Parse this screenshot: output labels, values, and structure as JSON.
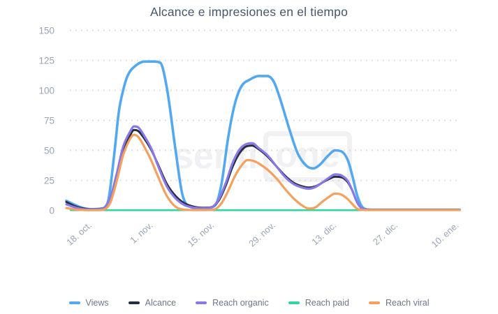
{
  "title": "Alcance e impresiones en el tiempo",
  "watermark": {
    "text": "senti",
    "box_text": "one"
  },
  "chart_data": {
    "type": "line",
    "title": "Alcance e impresiones en el tiempo",
    "xlabel": "",
    "ylabel": "",
    "ylim": [
      0,
      150
    ],
    "y_ticks": [
      0,
      25,
      50,
      75,
      100,
      125,
      150
    ],
    "grid": "horizontal-dotted",
    "grid_color": "#d8d8d8",
    "legend_position": "bottom",
    "x_ticks": [
      {
        "day": 4,
        "label": "18. oct."
      },
      {
        "day": 18,
        "label": "1. nov."
      },
      {
        "day": 32,
        "label": "15. nov."
      },
      {
        "day": 46,
        "label": "29. nov."
      },
      {
        "day": 60,
        "label": "13. dic."
      },
      {
        "day": 74,
        "label": "27. dic."
      },
      {
        "day": 88,
        "label": "10. ene."
      }
    ],
    "series": [
      {
        "name": "Views",
        "color": "#52A9F2",
        "width": 3.6,
        "points": [
          [
            0,
            8
          ],
          [
            2,
            4.5
          ],
          [
            4,
            1.8
          ],
          [
            6,
            1
          ],
          [
            8,
            1.5
          ],
          [
            9.5,
            7
          ],
          [
            11,
            48
          ],
          [
            12,
            82
          ],
          [
            13,
            100
          ],
          [
            14,
            112
          ],
          [
            16,
            121
          ],
          [
            18,
            124
          ],
          [
            20,
            124
          ],
          [
            21.5,
            123
          ],
          [
            23,
            102
          ],
          [
            25,
            50
          ],
          [
            26.5,
            14
          ],
          [
            28,
            3.5
          ],
          [
            30,
            2
          ],
          [
            32,
            2
          ],
          [
            34,
            4
          ],
          [
            35.5,
            22
          ],
          [
            37,
            60
          ],
          [
            38.5,
            88
          ],
          [
            40,
            103
          ],
          [
            42,
            109
          ],
          [
            44,
            112
          ],
          [
            46,
            112
          ],
          [
            47.5,
            107
          ],
          [
            49,
            92
          ],
          [
            51,
            68
          ],
          [
            53,
            47
          ],
          [
            55,
            37
          ],
          [
            56.5,
            35
          ],
          [
            58,
            38
          ],
          [
            60,
            46
          ],
          [
            61.5,
            50
          ],
          [
            63,
            49
          ],
          [
            64.5,
            41
          ],
          [
            65.5,
            28
          ],
          [
            66.5,
            13
          ],
          [
            67.5,
            4
          ],
          [
            68.5,
            1
          ],
          [
            70,
            0.5
          ],
          [
            74,
            0.5
          ],
          [
            78,
            0.5
          ],
          [
            83,
            0.5
          ],
          [
            88,
            0.5
          ],
          [
            90,
            0.5
          ]
        ]
      },
      {
        "name": "Alcance",
        "color": "#242E40",
        "width": 3,
        "points": [
          [
            0,
            7
          ],
          [
            2,
            3.5
          ],
          [
            4,
            1.5
          ],
          [
            6,
            1
          ],
          [
            8,
            1.3
          ],
          [
            10,
            9
          ],
          [
            11.5,
            28
          ],
          [
            13,
            50
          ],
          [
            14.5,
            62
          ],
          [
            15.5,
            67
          ],
          [
            16.5,
            66
          ],
          [
            18,
            59
          ],
          [
            19.5,
            50
          ],
          [
            21,
            38
          ],
          [
            23,
            22
          ],
          [
            25,
            12
          ],
          [
            27,
            6
          ],
          [
            29,
            3.2
          ],
          [
            31,
            2.2
          ],
          [
            33,
            2.5
          ],
          [
            35,
            9
          ],
          [
            36.5,
            21
          ],
          [
            38,
            36
          ],
          [
            39.5,
            47
          ],
          [
            41,
            53
          ],
          [
            42.5,
            54
          ],
          [
            44,
            51
          ],
          [
            46,
            45
          ],
          [
            48,
            37
          ],
          [
            50,
            29
          ],
          [
            52,
            23
          ],
          [
            54,
            20
          ],
          [
            55.5,
            19
          ],
          [
            57,
            20
          ],
          [
            58.5,
            23
          ],
          [
            60,
            26
          ],
          [
            61.5,
            28
          ],
          [
            63,
            27.5
          ],
          [
            64.5,
            23
          ],
          [
            65.5,
            16
          ],
          [
            66.5,
            7
          ],
          [
            67.5,
            2
          ],
          [
            68.5,
            0.7
          ],
          [
            70,
            0.5
          ],
          [
            74,
            0.5
          ],
          [
            80,
            0.5
          ],
          [
            85,
            0.5
          ],
          [
            88,
            0.5
          ],
          [
            90,
            0.5
          ]
        ]
      },
      {
        "name": "Reach organic",
        "color": "#8979E8",
        "width": 3.2,
        "points": [
          [
            0,
            5
          ],
          [
            2,
            2.5
          ],
          [
            4,
            1
          ],
          [
            6,
            0.8
          ],
          [
            8,
            1.1
          ],
          [
            10,
            10
          ],
          [
            11.5,
            30
          ],
          [
            13,
            53
          ],
          [
            14.5,
            65
          ],
          [
            15.5,
            70
          ],
          [
            16.5,
            69
          ],
          [
            18,
            61
          ],
          [
            19.5,
            51
          ],
          [
            21,
            37
          ],
          [
            23,
            20
          ],
          [
            25,
            10
          ],
          [
            27,
            4.5
          ],
          [
            29,
            2.4
          ],
          [
            31,
            1.8
          ],
          [
            33,
            2.2
          ],
          [
            35,
            10
          ],
          [
            36.5,
            23
          ],
          [
            38,
            39
          ],
          [
            39.5,
            50
          ],
          [
            41,
            55
          ],
          [
            42.5,
            56
          ],
          [
            44,
            52
          ],
          [
            46,
            46
          ],
          [
            48,
            37
          ],
          [
            50,
            28
          ],
          [
            52,
            22
          ],
          [
            54,
            19
          ],
          [
            55.5,
            18
          ],
          [
            57,
            19.5
          ],
          [
            58.5,
            23
          ],
          [
            60,
            27
          ],
          [
            61.5,
            30
          ],
          [
            63,
            29
          ],
          [
            64.5,
            24
          ],
          [
            65.5,
            16
          ],
          [
            66.5,
            7
          ],
          [
            67.5,
            2
          ],
          [
            68.5,
            0.6
          ],
          [
            70,
            0.4
          ],
          [
            74,
            0.4
          ],
          [
            80,
            0.4
          ],
          [
            85,
            0.4
          ],
          [
            88,
            0.4
          ],
          [
            90,
            0.4
          ]
        ]
      },
      {
        "name": "Reach paid",
        "color": "#2FD6A0",
        "width": 2.6,
        "points": [
          [
            1,
            0.2
          ],
          [
            10,
            0.2
          ],
          [
            20,
            0.2
          ],
          [
            30,
            0.2
          ],
          [
            40,
            0.2
          ],
          [
            50,
            0.2
          ],
          [
            60,
            0.2
          ],
          [
            70,
            0.2
          ],
          [
            80,
            0.2
          ],
          [
            90,
            0.2
          ]
        ]
      },
      {
        "name": "Reach viral",
        "color": "#F5A05C",
        "width": 3.2,
        "points": [
          [
            0,
            2
          ],
          [
            2,
            0.8
          ],
          [
            4,
            0.3
          ],
          [
            6,
            0.2
          ],
          [
            8,
            0.3
          ],
          [
            10,
            6
          ],
          [
            11.5,
            24
          ],
          [
            13,
            46
          ],
          [
            14.5,
            59
          ],
          [
            15.5,
            63
          ],
          [
            16.5,
            61
          ],
          [
            18,
            52
          ],
          [
            19.5,
            41
          ],
          [
            21,
            28
          ],
          [
            23,
            12
          ],
          [
            25,
            3
          ],
          [
            26.5,
            0.8
          ],
          [
            28,
            0.4
          ],
          [
            30,
            0.3
          ],
          [
            32,
            0.3
          ],
          [
            34,
            1
          ],
          [
            35.5,
            6
          ],
          [
            37,
            16
          ],
          [
            38.5,
            28
          ],
          [
            40,
            37
          ],
          [
            41.5,
            42
          ],
          [
            43,
            41
          ],
          [
            44.5,
            38
          ],
          [
            46,
            34
          ],
          [
            48,
            27
          ],
          [
            50,
            18
          ],
          [
            52,
            10
          ],
          [
            54,
            4
          ],
          [
            55.5,
            1.5
          ],
          [
            57,
            2.5
          ],
          [
            58.5,
            7
          ],
          [
            60,
            11
          ],
          [
            61.5,
            14
          ],
          [
            63,
            13
          ],
          [
            64.5,
            9
          ],
          [
            65.5,
            5
          ],
          [
            66.5,
            1.5
          ],
          [
            67.5,
            0.4
          ],
          [
            69,
            0.3
          ],
          [
            74,
            0.3
          ],
          [
            80,
            0.3
          ],
          [
            85,
            0.3
          ],
          [
            88,
            0.3
          ],
          [
            90,
            0.3
          ]
        ]
      }
    ]
  }
}
